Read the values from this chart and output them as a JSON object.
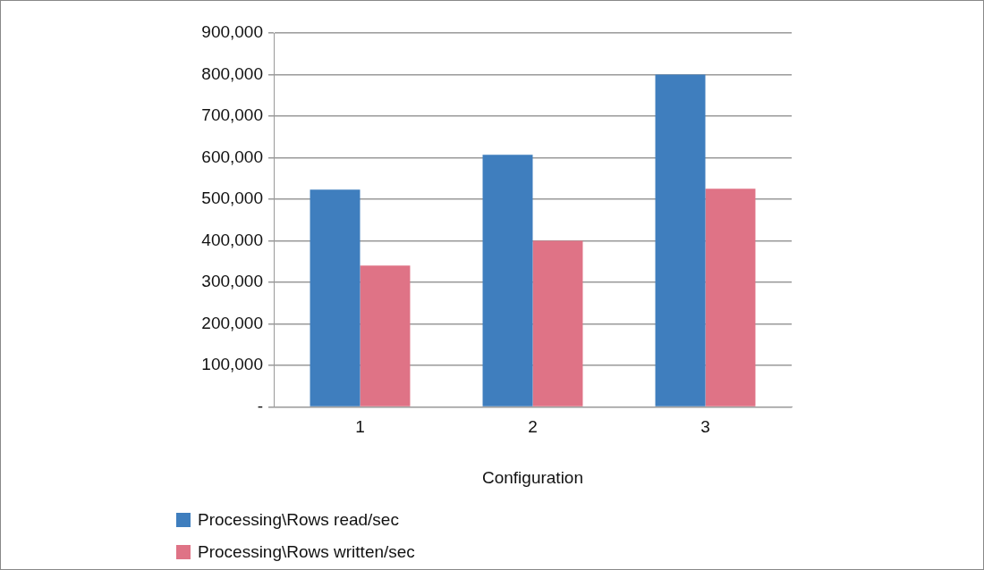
{
  "chart_data": {
    "type": "bar",
    "xlabel": "Configuration",
    "categories": [
      "1",
      "2",
      "3"
    ],
    "series": [
      {
        "name": "Processing\\Rows read/sec",
        "color": "#3f7ebe",
        "values": [
          523000,
          607000,
          800000
        ]
      },
      {
        "name": "Processing\\Rows written/sec",
        "color": "#df7386",
        "values": [
          340000,
          400000,
          525000
        ]
      }
    ],
    "ylim": [
      0,
      900000
    ],
    "yticks": [
      {
        "value": 0,
        "label": "-"
      },
      {
        "value": 100000,
        "label": "100,000"
      },
      {
        "value": 200000,
        "label": "200,000"
      },
      {
        "value": 300000,
        "label": "300,000"
      },
      {
        "value": 400000,
        "label": "400,000"
      },
      {
        "value": 500000,
        "label": "500,000"
      },
      {
        "value": 600000,
        "label": "600,000"
      },
      {
        "value": 700000,
        "label": "700,000"
      },
      {
        "value": 800000,
        "label": "800,000"
      },
      {
        "value": 900000,
        "label": "900,000"
      }
    ],
    "grid": "y",
    "legend": "bottom left"
  }
}
